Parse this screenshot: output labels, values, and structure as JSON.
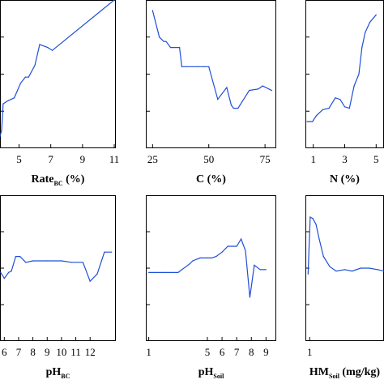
{
  "line_color": "#1f4fd6",
  "chart_data": [
    {
      "type": "line",
      "xlabel": {
        "main": "Rate",
        "sub": "BC",
        "suffix": " (%)"
      },
      "xlim": [
        3.8,
        11.1
      ],
      "xticks": [
        5,
        7,
        9,
        11
      ],
      "xtick_labels": [
        "5",
        "7",
        "9",
        "11"
      ],
      "ylim": [
        0,
        1
      ],
      "yticks": [
        0.25,
        0.5,
        0.75
      ],
      "x": [
        3.8,
        3.9,
        4.0,
        4.3,
        4.7,
        5.1,
        5.4,
        5.6,
        6.0,
        6.3,
        6.8,
        7.1,
        11.0
      ],
      "values": [
        0.08,
        0.12,
        0.3,
        0.32,
        0.34,
        0.44,
        0.48,
        0.48,
        0.56,
        0.7,
        0.68,
        0.66,
        1.0
      ]
    },
    {
      "type": "line",
      "xlabel": {
        "main": "C",
        "sub": "",
        "suffix": "  (%)"
      },
      "xlim": [
        22,
        80
      ],
      "xticks": [
        25,
        50,
        75
      ],
      "xtick_labels": [
        "25",
        "50",
        "75"
      ],
      "ylim": [
        0,
        1
      ],
      "yticks": [
        0.25,
        0.5,
        0.75
      ],
      "x": [
        25,
        28,
        30,
        31,
        33,
        35,
        37,
        38,
        40,
        45,
        48,
        50,
        54,
        58,
        60,
        61,
        63,
        68,
        72,
        74,
        78
      ],
      "values": [
        0.93,
        0.75,
        0.72,
        0.72,
        0.68,
        0.68,
        0.68,
        0.55,
        0.55,
        0.55,
        0.55,
        0.55,
        0.33,
        0.41,
        0.29,
        0.27,
        0.27,
        0.39,
        0.4,
        0.42,
        0.39
      ]
    },
    {
      "type": "line",
      "xlabel": {
        "main": "N",
        "sub": "",
        "suffix": " (%)"
      },
      "xlim": [
        0.5,
        5.5
      ],
      "xticks": [
        1,
        3,
        5
      ],
      "xtick_labels": [
        "1",
        "3",
        "5"
      ],
      "ylim": [
        0,
        1
      ],
      "yticks": [
        0.25,
        0.5,
        0.75
      ],
      "x": [
        0.6,
        0.95,
        1.2,
        1.6,
        2.0,
        2.4,
        2.7,
        3.0,
        3.3,
        3.6,
        3.9,
        4.1,
        4.3,
        4.6,
        5.0
      ],
      "values": [
        0.18,
        0.18,
        0.22,
        0.26,
        0.27,
        0.34,
        0.33,
        0.28,
        0.27,
        0.42,
        0.5,
        0.68,
        0.78,
        0.85,
        0.9
      ]
    },
    {
      "type": "line",
      "xlabel": {
        "main": "pH",
        "sub": "BC",
        "suffix": ""
      },
      "xlim": [
        5.7,
        13.8
      ],
      "xticks": [
        6,
        7,
        8,
        9,
        10,
        11,
        12
      ],
      "xtick_labels": [
        "6",
        "7",
        "8",
        "9",
        "10",
        "11",
        "12"
      ],
      "ylim": [
        0,
        1
      ],
      "yticks": [
        0.25,
        0.5,
        0.75
      ],
      "x": [
        5.75,
        6.0,
        6.3,
        6.5,
        6.8,
        7.1,
        7.5,
        8.0,
        9.0,
        10.0,
        10.7,
        11.5,
        12.0,
        12.5,
        13.0,
        13.5
      ],
      "values": [
        0.47,
        0.43,
        0.47,
        0.48,
        0.58,
        0.58,
        0.54,
        0.55,
        0.55,
        0.55,
        0.54,
        0.54,
        0.41,
        0.46,
        0.61,
        0.61
      ]
    },
    {
      "type": "line",
      "xlabel": {
        "main": "pH",
        "sub": "Soil",
        "suffix": ""
      },
      "xlim": [
        0.8,
        9.7
      ],
      "xticks": [
        1,
        5,
        6,
        7,
        8,
        9
      ],
      "xtick_labels": [
        "1",
        "5",
        "6",
        "7",
        "8",
        "9"
      ],
      "ylim": [
        0,
        1
      ],
      "yticks": [
        0.25,
        0.5,
        0.75
      ],
      "x": [
        1.0,
        2.0,
        3.0,
        3.8,
        4.0,
        4.5,
        5.0,
        5.3,
        5.6,
        6.0,
        6.4,
        6.8,
        7.0,
        7.3,
        7.6,
        7.9,
        8.2,
        8.6,
        9.0
      ],
      "values": [
        0.47,
        0.47,
        0.47,
        0.53,
        0.55,
        0.57,
        0.57,
        0.57,
        0.58,
        0.61,
        0.65,
        0.65,
        0.65,
        0.7,
        0.62,
        0.3,
        0.52,
        0.49,
        0.49
      ]
    },
    {
      "type": "line",
      "xlabel": {
        "main": "HM",
        "sub": "Soil",
        "suffix": " (mg/kg)"
      },
      "xlim": [
        0.6,
        8.0
      ],
      "xticks": [
        1
      ],
      "xtick_labels": [
        "1"
      ],
      "ylim": [
        0,
        1
      ],
      "yticks": [
        0.25,
        0.5,
        0.75
      ],
      "x": [
        0.85,
        1.05,
        1.3,
        1.6,
        1.9,
        2.3,
        2.9,
        3.5,
        4.3,
        5.0,
        5.8,
        6.6,
        7.4,
        8.0
      ],
      "values": [
        0.46,
        0.85,
        0.84,
        0.8,
        0.7,
        0.58,
        0.51,
        0.48,
        0.49,
        0.48,
        0.5,
        0.5,
        0.49,
        0.48
      ]
    }
  ]
}
